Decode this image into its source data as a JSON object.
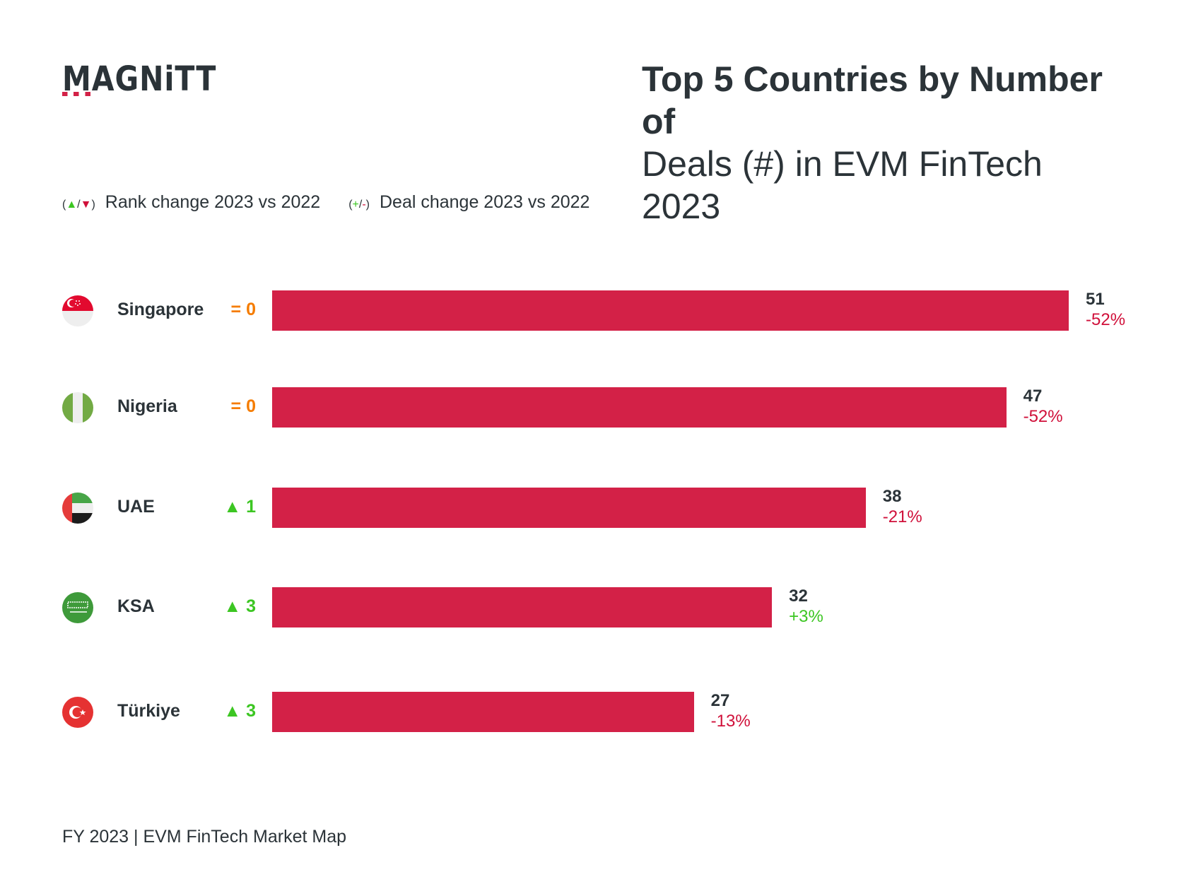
{
  "logo": "MAGNiTT",
  "title": {
    "line1": "Top 5 Countries by Number of",
    "line2": "Deals (#) in EVM FinTech 2023"
  },
  "legend": {
    "rank_symbol_open": "(",
    "rank_up": "▲",
    "rank_sep": "/",
    "rank_down": "▼",
    "rank_symbol_close": ")",
    "rank_label": "Rank change 2023 vs 2022",
    "deal_symbol_open": "(",
    "deal_plus": "+",
    "deal_sep": "/",
    "deal_minus": "-",
    "deal_symbol_close": ")",
    "deal_label": "Deal change 2023 vs 2022"
  },
  "colors": {
    "bar": "#d32147",
    "positive": "#3cc622",
    "negative": "#d0103a",
    "neutral": "#f57c00"
  },
  "chart_data": {
    "type": "bar",
    "orientation": "horizontal",
    "title": "Top 5 Countries by Number of Deals (#) in EVM FinTech 2023",
    "categories": [
      "Singapore",
      "Nigeria",
      "UAE",
      "KSA",
      "Türkiye"
    ],
    "values": [
      51,
      47,
      38,
      32,
      27
    ],
    "value_labels": [
      "51",
      "47",
      "38",
      "32",
      "27"
    ],
    "deal_change": [
      "-52%",
      "-52%",
      "-21%",
      "+3%",
      "-13%"
    ],
    "rank_change": [
      "= 0",
      "= 0",
      "▲ 1",
      "▲ 3",
      "▲ 3"
    ],
    "rank_change_type": [
      "eq",
      "eq",
      "up",
      "up",
      "up"
    ],
    "flags": [
      "singapore-flag",
      "nigeria-flag",
      "uae-flag",
      "saudi-flag",
      "turkey-flag"
    ],
    "xlim": [
      0,
      51
    ]
  },
  "footer": "FY 2023 | EVM FinTech Market Map"
}
